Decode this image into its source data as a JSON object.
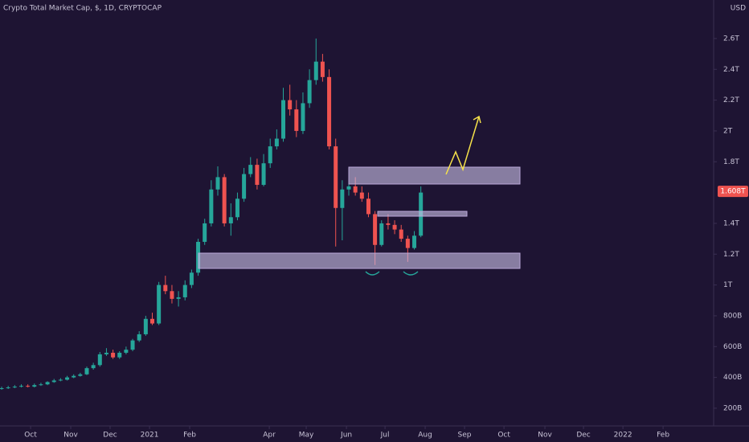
{
  "chart_data": {
    "type": "candlestick",
    "title": "Crypto Total Market Cap, $, 1D, CRYPTOCAP",
    "currency": "USD",
    "up_color": "#26a69a",
    "down_color": "#ef5350",
    "grid": false,
    "open": [
      325,
      330,
      335,
      340,
      345,
      340,
      350,
      355,
      370,
      380,
      385,
      400,
      410,
      420,
      460,
      480,
      550,
      560,
      530,
      560,
      580,
      640,
      680,
      780,
      750,
      1000,
      960,
      910,
      920,
      1000,
      1080,
      1280,
      1400,
      1620,
      1700,
      1400,
      1440,
      1560,
      1720,
      1780,
      1650,
      1790,
      1900,
      1950,
      2200,
      2140,
      2000,
      2180,
      2330,
      2450,
      2350,
      1900,
      1500,
      1620,
      1640,
      1600,
      1560,
      1460,
      1260,
      1400,
      1390,
      1360,
      1300,
      1240,
      1320
    ],
    "high": [
      340,
      345,
      350,
      355,
      355,
      360,
      365,
      375,
      390,
      395,
      410,
      420,
      430,
      470,
      495,
      565,
      590,
      580,
      570,
      600,
      650,
      700,
      800,
      820,
      1020,
      1060,
      1000,
      960,
      1030,
      1100,
      1300,
      1430,
      1680,
      1770,
      1720,
      1530,
      1600,
      1760,
      1830,
      1820,
      1850,
      1950,
      2010,
      2280,
      2300,
      2200,
      2250,
      2400,
      2600,
      2500,
      2400,
      1950,
      1680,
      1750,
      1700,
      1640,
      1600,
      1480,
      1420,
      1460,
      1420,
      1390,
      1320,
      1350,
      1640
    ],
    "low": [
      320,
      325,
      330,
      335,
      335,
      335,
      345,
      350,
      365,
      375,
      380,
      395,
      405,
      415,
      450,
      470,
      540,
      520,
      520,
      550,
      570,
      630,
      670,
      740,
      740,
      940,
      880,
      860,
      900,
      980,
      1060,
      1260,
      1380,
      1580,
      1380,
      1320,
      1420,
      1540,
      1700,
      1620,
      1640,
      1760,
      1880,
      1930,
      2100,
      1960,
      1980,
      2150,
      2300,
      2320,
      1880,
      1250,
      1290,
      1580,
      1580,
      1540,
      1440,
      1130,
      1250,
      1360,
      1330,
      1280,
      1150,
      1230,
      1310
    ],
    "close": [
      330,
      335,
      340,
      345,
      340,
      350,
      355,
      370,
      380,
      385,
      400,
      410,
      420,
      460,
      480,
      550,
      560,
      530,
      560,
      580,
      640,
      680,
      780,
      750,
      1000,
      960,
      910,
      920,
      1000,
      1080,
      1280,
      1400,
      1620,
      1700,
      1400,
      1440,
      1560,
      1720,
      1780,
      1650,
      1790,
      1900,
      1950,
      2200,
      2140,
      2000,
      2180,
      2330,
      2450,
      2350,
      1900,
      1500,
      1620,
      1640,
      1600,
      1560,
      1460,
      1260,
      1400,
      1390,
      1360,
      1300,
      1240,
      1320,
      1600
    ],
    "last_price": {
      "value": 1608,
      "label": "1.608T"
    },
    "ylim": [
      85,
      2850
    ],
    "yticks": [
      {
        "value": 200,
        "label": "200B"
      },
      {
        "value": 400,
        "label": "400B"
      },
      {
        "value": 600,
        "label": "600B"
      },
      {
        "value": 800,
        "label": "800B"
      },
      {
        "value": 1000,
        "label": "1T"
      },
      {
        "value": 1200,
        "label": "1.2T"
      },
      {
        "value": 1400,
        "label": "1.4T"
      },
      {
        "value": 1800,
        "label": "1.8T"
      },
      {
        "value": 2000,
        "label": "2T"
      },
      {
        "value": 2200,
        "label": "2.2T"
      },
      {
        "value": 2400,
        "label": "2.4T"
      },
      {
        "value": 2600,
        "label": "2.6T"
      }
    ],
    "xlim": [
      -0.25,
      108.7
    ],
    "xticks": [
      {
        "value": 4.42,
        "label": "Oct"
      },
      {
        "value": 10.55,
        "label": "Nov"
      },
      {
        "value": 16.56,
        "label": "Dec"
      },
      {
        "value": 22.58,
        "label": "2021"
      },
      {
        "value": 28.71,
        "label": "Feb"
      },
      {
        "value": 40.86,
        "label": "Apr"
      },
      {
        "value": 46.5,
        "label": "May"
      },
      {
        "value": 52.64,
        "label": "Jun"
      },
      {
        "value": 58.53,
        "label": "Jul"
      },
      {
        "value": 64.66,
        "label": "Aug"
      },
      {
        "value": 70.67,
        "label": "Sep"
      },
      {
        "value": 76.69,
        "label": "Oct"
      },
      {
        "value": 82.94,
        "label": "Nov"
      },
      {
        "value": 88.83,
        "label": "Dec"
      },
      {
        "value": 94.85,
        "label": "2022"
      },
      {
        "value": 100.98,
        "label": "Feb"
      }
    ]
  }
}
